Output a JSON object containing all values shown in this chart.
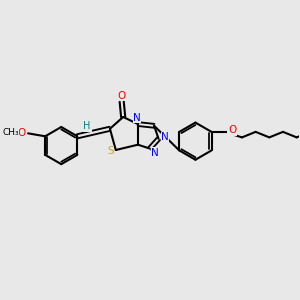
{
  "bg_color": "#e8e8e8",
  "C_color": "#000000",
  "N_color": "#0000ff",
  "O_color": "#ff0000",
  "S_color": "#ccaa00",
  "H_color": "#008080",
  "bond_color": "#000000",
  "lw": 1.5,
  "figsize": [
    3.0,
    3.0
  ],
  "dpi": 100,
  "xlim": [
    0,
    10
  ],
  "ylim": [
    0,
    10
  ]
}
